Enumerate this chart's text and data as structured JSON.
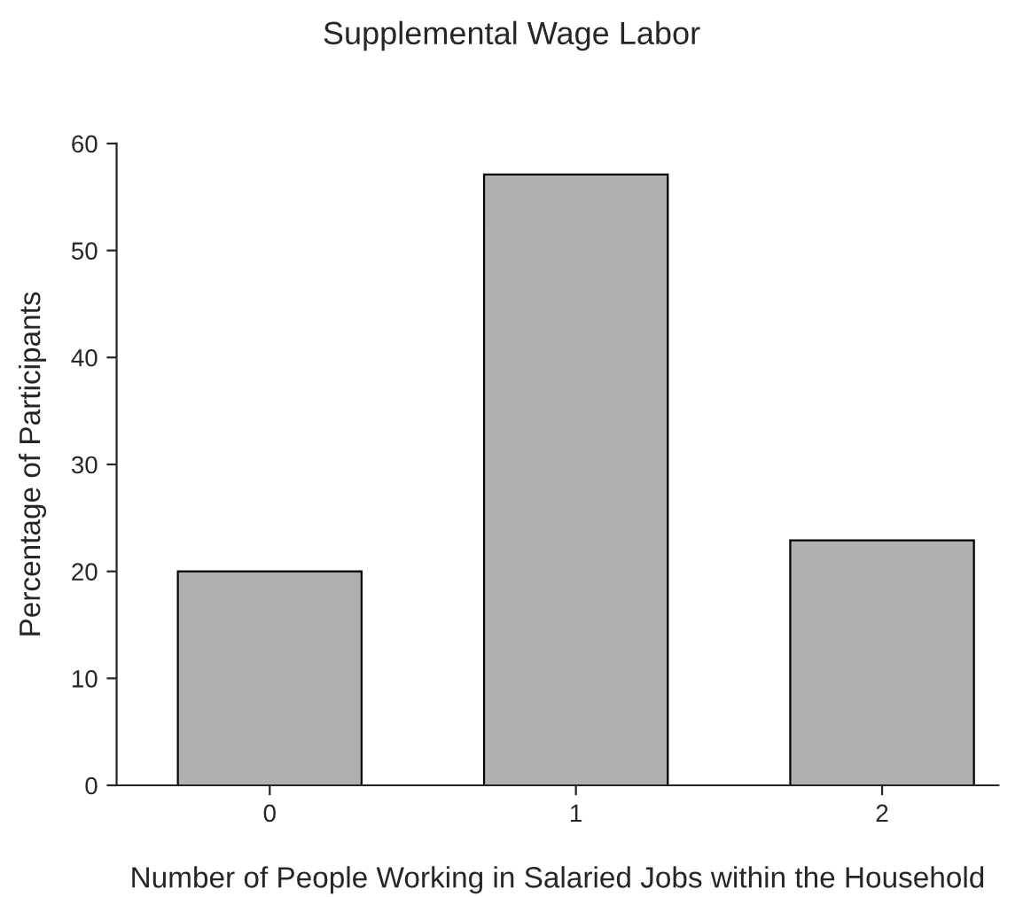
{
  "chart_data": {
    "type": "bar",
    "title": "Supplemental Wage Labor",
    "xlabel": "Number of People Working in Salaried Jobs within the Household",
    "ylabel": "Percentage of Participants",
    "categories": [
      "0",
      "1",
      "2"
    ],
    "values": [
      20,
      57.1,
      22.9
    ],
    "color": "#b0b0b0",
    "ylim": [
      0,
      60
    ],
    "yticks": [
      0,
      10,
      20,
      30,
      40,
      50,
      60
    ],
    "grid": false
  }
}
